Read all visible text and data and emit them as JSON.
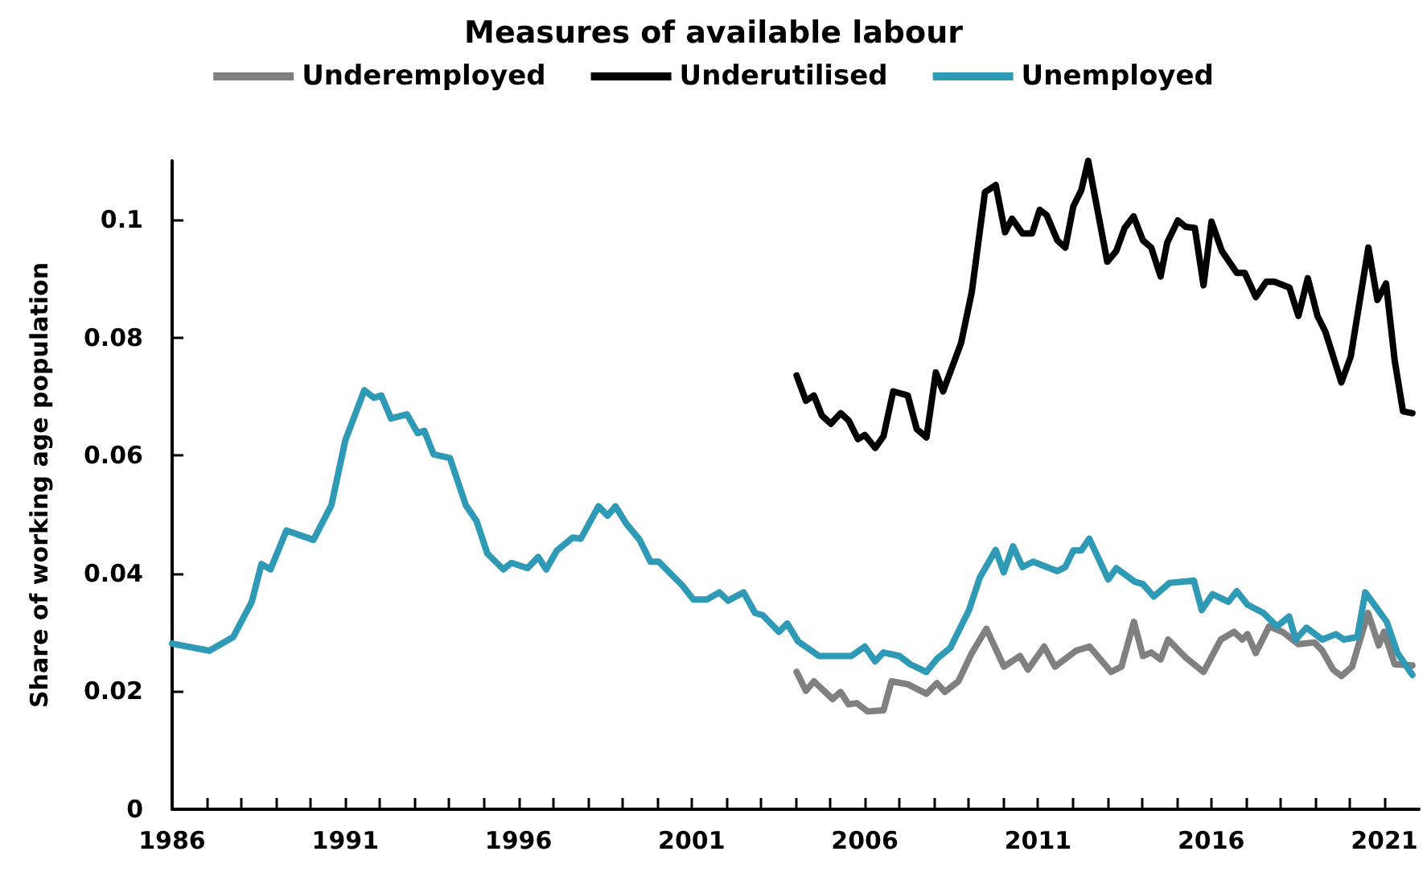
{
  "chart_data": {
    "type": "line",
    "title": "Measures of available labour",
    "ylabel": "Share of working age population",
    "xlim": [
      1986,
      2022
    ],
    "xticks": [
      1986,
      {
        "value": 1987,
        "label": null
      },
      {
        "value": 1988,
        "label": null
      },
      {
        "value": 1989,
        "label": null
      },
      {
        "value": 1990,
        "label": null
      },
      1991,
      {
        "value": 1992,
        "label": null
      },
      {
        "value": 1993,
        "label": null
      },
      {
        "value": 1994,
        "label": null
      },
      {
        "value": 1995,
        "label": null
      },
      1996,
      {
        "value": 1997,
        "label": null
      },
      {
        "value": 1998,
        "label": null
      },
      {
        "value": 1999,
        "label": null
      },
      {
        "value": 2000,
        "label": null
      },
      2001,
      {
        "value": 2002,
        "label": null
      },
      {
        "value": 2003,
        "label": null
      },
      {
        "value": 2004,
        "label": null
      },
      {
        "value": 2005,
        "label": null
      },
      2006,
      {
        "value": 2007,
        "label": null
      },
      {
        "value": 2008,
        "label": null
      },
      {
        "value": 2009,
        "label": null
      },
      {
        "value": 2010,
        "label": null
      },
      2011,
      {
        "value": 2012,
        "label": null
      },
      {
        "value": 2013,
        "label": null
      },
      {
        "value": 2014,
        "label": null
      },
      {
        "value": 2015,
        "label": null
      },
      2016,
      {
        "value": 2017,
        "label": null
      },
      {
        "value": 2018,
        "label": null
      },
      {
        "value": 2019,
        "label": null
      },
      {
        "value": 2020,
        "label": null
      },
      2021
    ],
    "ylim": [
      0,
      0.11
    ],
    "yticks": [
      0,
      0.02,
      0.04,
      0.06,
      0.08,
      0.1
    ],
    "grid": false,
    "legend": "top",
    "marker": "none",
    "line_style": "solid",
    "series": [
      {
        "name": "Underemployed",
        "color": "#808080",
        "x": [
          2004.03,
          2004.3,
          2004.53,
          2005.07,
          2005.3,
          2005.53,
          2005.77,
          2006.08,
          2006.54,
          2006.77,
          2007.24,
          2007.78,
          2008.08,
          2008.31,
          2008.7,
          2009.09,
          2009.51,
          2010.02,
          2010.48,
          2010.71,
          2011.18,
          2011.49,
          2012.1,
          2012.49,
          2013.11,
          2013.41,
          2013.77,
          2014.03,
          2014.27,
          2014.54,
          2014.76,
          2015.27,
          2015.78,
          2016.28,
          2016.66,
          2016.9,
          2017.05,
          2017.29,
          2017.67,
          2018.06,
          2018.52,
          2018.98,
          2019.21,
          2019.52,
          2019.76,
          2020.07,
          2020.53,
          2020.84,
          2020.99,
          2021.3,
          2021.81
        ],
        "values": [
          0.0233,
          0.0201,
          0.0217,
          0.0187,
          0.0199,
          0.0178,
          0.018,
          0.0166,
          0.0168,
          0.0217,
          0.0212,
          0.0196,
          0.0214,
          0.0199,
          0.0217,
          0.0265,
          0.0306,
          0.0242,
          0.026,
          0.0237,
          0.0276,
          0.0242,
          0.0269,
          0.0276,
          0.0233,
          0.0242,
          0.0318,
          0.026,
          0.0266,
          0.0254,
          0.0288,
          0.0257,
          0.0233,
          0.0288,
          0.0301,
          0.0288,
          0.0297,
          0.0265,
          0.031,
          0.0301,
          0.028,
          0.0283,
          0.0269,
          0.0237,
          0.0226,
          0.0242,
          0.0333,
          0.0278,
          0.0301,
          0.0246,
          0.0244
        ]
      },
      {
        "name": "Underutilised",
        "color": "#000000",
        "x": [
          2004.03,
          2004.3,
          2004.53,
          2004.76,
          2005.02,
          2005.3,
          2005.53,
          2005.8,
          2006.0,
          2006.3,
          2006.54,
          2006.82,
          2007.24,
          2007.5,
          2007.78,
          2008.05,
          2008.26,
          2008.78,
          2009.09,
          2009.47,
          2009.78,
          2010.05,
          2010.25,
          2010.55,
          2010.83,
          2011.05,
          2011.25,
          2011.56,
          2011.79,
          2012.02,
          2012.25,
          2012.45,
          2013.0,
          2013.26,
          2013.5,
          2013.76,
          2014.03,
          2014.27,
          2014.54,
          2014.73,
          2015.04,
          2015.27,
          2015.53,
          2015.78,
          2016.01,
          2016.31,
          2016.74,
          2016.97,
          2017.29,
          2017.59,
          2017.83,
          2018.26,
          2018.52,
          2018.79,
          2019.07,
          2019.3,
          2019.76,
          2020.03,
          2020.54,
          2020.8,
          2021.05,
          2021.3,
          2021.54,
          2021.81
        ],
        "values": [
          0.0736,
          0.0693,
          0.0702,
          0.0668,
          0.0654,
          0.0672,
          0.066,
          0.0628,
          0.0635,
          0.0613,
          0.0633,
          0.0709,
          0.0702,
          0.0645,
          0.0631,
          0.0741,
          0.0709,
          0.0791,
          0.0878,
          0.1047,
          0.1059,
          0.0979,
          0.1002,
          0.0977,
          0.0977,
          0.1017,
          0.1008,
          0.0965,
          0.0953,
          0.1023,
          0.105,
          0.11,
          0.0929,
          0.0947,
          0.0986,
          0.1006,
          0.0965,
          0.0953,
          0.0904,
          0.0961,
          0.0999,
          0.0988,
          0.0986,
          0.0889,
          0.0997,
          0.0947,
          0.091,
          0.091,
          0.0869,
          0.0895,
          0.0895,
          0.0885,
          0.0837,
          0.0901,
          0.0837,
          0.081,
          0.0724,
          0.0768,
          0.0953,
          0.0864,
          0.0892,
          0.0761,
          0.0675,
          0.0672
        ]
      },
      {
        "name": "Unemployed",
        "color": "#2e9ab5",
        "x": [
          1986.0,
          1987.07,
          1987.76,
          1988.3,
          1988.58,
          1988.84,
          1989.3,
          1990.08,
          1990.6,
          1991.0,
          1991.55,
          1991.83,
          1992.04,
          1992.32,
          1992.78,
          1993.09,
          1993.28,
          1993.55,
          1994.02,
          1994.48,
          1994.79,
          1995.1,
          1995.56,
          1995.8,
          1996.26,
          1996.57,
          1996.8,
          1997.11,
          1997.57,
          1997.8,
          1998.31,
          1998.57,
          1998.8,
          1999.12,
          1999.5,
          1999.81,
          2000.05,
          2000.74,
          2001.05,
          2001.44,
          2001.8,
          2002.05,
          2002.5,
          2002.83,
          2003.06,
          2003.52,
          2003.76,
          2004.07,
          2004.68,
          2005.61,
          2006.0,
          2006.3,
          2006.54,
          2007.0,
          2007.31,
          2007.78,
          2008.08,
          2008.47,
          2009.01,
          2009.32,
          2009.78,
          2010.01,
          2010.28,
          2010.55,
          2010.86,
          2011.56,
          2011.79,
          2012.02,
          2012.25,
          2012.48,
          2013.03,
          2013.26,
          2013.8,
          2014.03,
          2014.34,
          2014.8,
          2015.5,
          2015.73,
          2016.04,
          2016.5,
          2016.74,
          2017.05,
          2017.51,
          2017.9,
          2018.25,
          2018.44,
          2018.75,
          2019.21,
          2019.6,
          2019.83,
          2020.22,
          2020.45,
          2020.76,
          2021.07,
          2021.38,
          2021.81
        ],
        "values": [
          0.0281,
          0.0269,
          0.0292,
          0.0352,
          0.0416,
          0.0407,
          0.0473,
          0.0457,
          0.0516,
          0.0626,
          0.0711,
          0.0698,
          0.0702,
          0.0663,
          0.067,
          0.0638,
          0.0642,
          0.0602,
          0.0596,
          0.0516,
          0.0489,
          0.0434,
          0.0407,
          0.0418,
          0.0409,
          0.0428,
          0.0407,
          0.0439,
          0.0461,
          0.0459,
          0.0514,
          0.0498,
          0.0514,
          0.0484,
          0.0457,
          0.042,
          0.042,
          0.0379,
          0.0356,
          0.0356,
          0.0368,
          0.0354,
          0.0368,
          0.0333,
          0.0329,
          0.0301,
          0.0315,
          0.0285,
          0.026,
          0.026,
          0.0276,
          0.0251,
          0.0266,
          0.026,
          0.0246,
          0.0233,
          0.0255,
          0.0274,
          0.0338,
          0.0393,
          0.044,
          0.0402,
          0.0446,
          0.0411,
          0.042,
          0.0404,
          0.0411,
          0.0439,
          0.0439,
          0.0459,
          0.039,
          0.0409,
          0.0386,
          0.0382,
          0.0361,
          0.0384,
          0.0388,
          0.0338,
          0.0365,
          0.0352,
          0.037,
          0.0347,
          0.0333,
          0.031,
          0.0327,
          0.0288,
          0.0308,
          0.0288,
          0.0297,
          0.0288,
          0.0292,
          0.0368,
          0.0343,
          0.0318,
          0.0265,
          0.0228
        ]
      }
    ]
  }
}
